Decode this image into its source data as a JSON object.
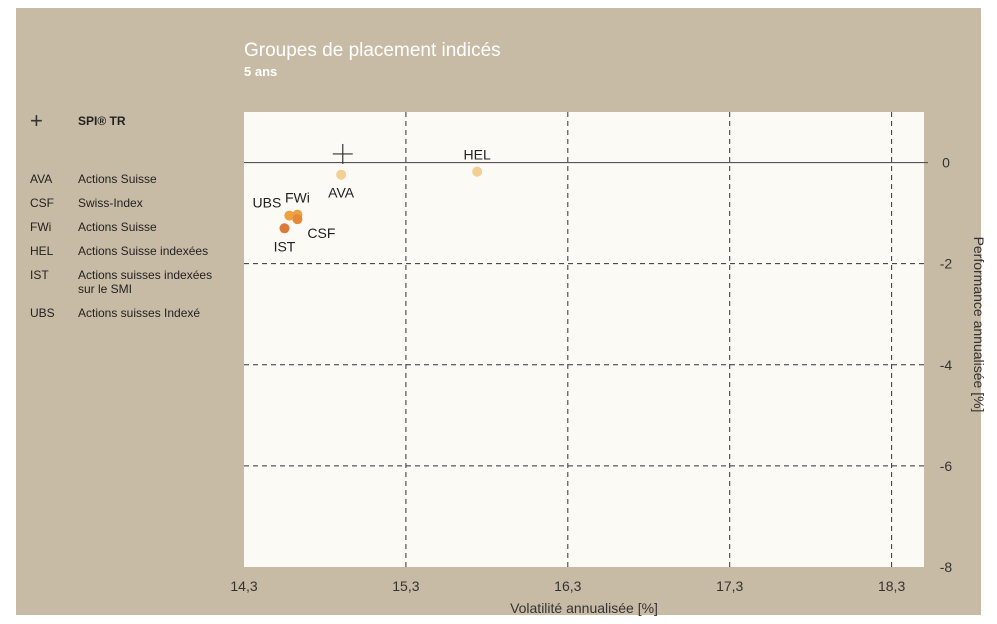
{
  "chart_data": {
    "type": "scatter",
    "title": "Groupes de placement indicés",
    "subtitle": "5 ans",
    "xlabel": "Volatilité annualisée [%]",
    "ylabel": "Performance annualisée [%]",
    "xlim": [
      14.3,
      18.5
    ],
    "ylim": [
      -8,
      1
    ],
    "xticks": [
      14.3,
      15.3,
      16.3,
      17.3,
      18.3
    ],
    "xtick_labels": [
      "14,3",
      "15,3",
      "16,3",
      "17,3",
      "18,3"
    ],
    "yticks": [
      0,
      -2,
      -4,
      -6,
      -8
    ],
    "ytick_labels": [
      "0",
      "-2",
      "-4",
      "-6",
      "-8"
    ],
    "grid": true,
    "reference": {
      "code": "+",
      "name": "SPI® TR",
      "x": 14.91,
      "y": 0.17
    },
    "points": [
      {
        "code": "AVA",
        "x": 14.9,
        "y": -0.24,
        "color": "#f3cf93",
        "label_pos": "below"
      },
      {
        "code": "HEL",
        "x": 15.74,
        "y": -0.18,
        "color": "#f3cf93",
        "label_pos": "above"
      },
      {
        "code": "UBS",
        "x": 14.58,
        "y": -1.05,
        "color": "#f0a040",
        "label_pos": "left"
      },
      {
        "code": "FWi",
        "x": 14.63,
        "y": -1.03,
        "color": "#eea040",
        "label_pos": "above"
      },
      {
        "code": "CSF",
        "x": 14.63,
        "y": -1.12,
        "color": "#e38a3a",
        "label_pos": "below-right"
      },
      {
        "code": "IST",
        "x": 14.55,
        "y": -1.3,
        "color": "#dc7a3c",
        "label_pos": "below"
      }
    ],
    "legend_placement": "left"
  },
  "legend": {
    "reference_label": "SPI® TR",
    "items": [
      {
        "code": "AVA",
        "desc": "Actions Suisse"
      },
      {
        "code": "CSF",
        "desc": "Swiss-Index"
      },
      {
        "code": "FWi",
        "desc": "Actions Suisse"
      },
      {
        "code": "HEL",
        "desc": "Actions Suisse indexées"
      },
      {
        "code": "IST",
        "desc": "Actions suisses indexées sur le SMI"
      },
      {
        "code": "UBS",
        "desc": "Actions suisses Indexé"
      }
    ]
  }
}
